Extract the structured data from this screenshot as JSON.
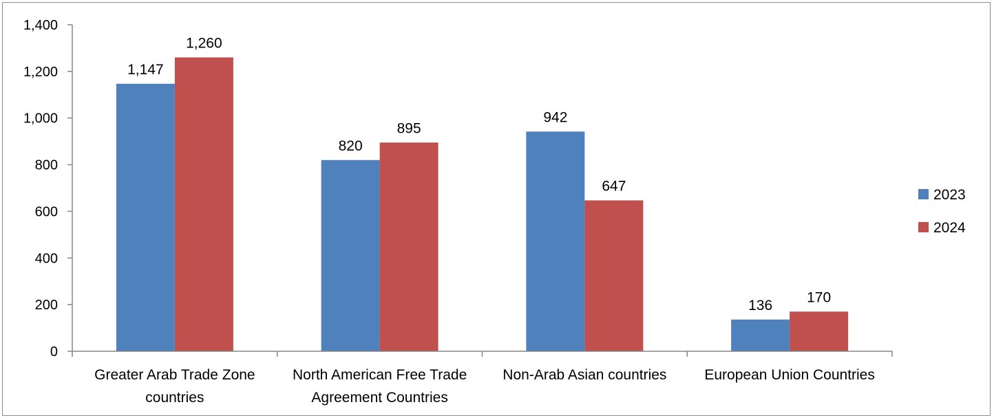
{
  "chart_data": {
    "type": "bar",
    "categories": [
      [
        "Greater Arab Trade Zone",
        "countries"
      ],
      [
        "North American Free Trade",
        "Agreement Countries"
      ],
      [
        "Non-Arab Asian countries"
      ],
      [
        "European Union Countries"
      ]
    ],
    "series": [
      {
        "name": "2023",
        "color": "#4f81bd",
        "values": [
          1147,
          820,
          942,
          136
        ],
        "labels": [
          "1,147",
          "820",
          "942",
          "136"
        ]
      },
      {
        "name": "2024",
        "color": "#c0504d",
        "values": [
          1260,
          895,
          647,
          170
        ],
        "labels": [
          "1,260",
          "895",
          "647",
          "170"
        ]
      }
    ],
    "ylim": [
      0,
      1400
    ],
    "yticks": [
      0,
      200,
      400,
      600,
      800,
      1000,
      1200,
      1400
    ],
    "ytick_labels": [
      "0",
      "200",
      "400",
      "600",
      "800",
      "1,000",
      "1,200",
      "1,400"
    ],
    "grid": false,
    "legend_position": "right",
    "title": "",
    "xlabel": "",
    "ylabel": ""
  }
}
